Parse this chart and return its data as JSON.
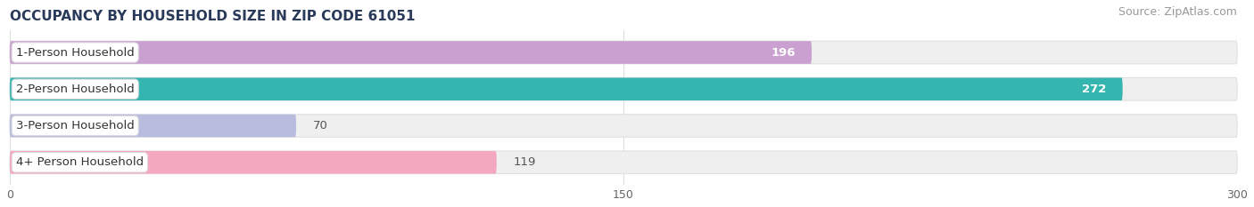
{
  "title": "OCCUPANCY BY HOUSEHOLD SIZE IN ZIP CODE 61051",
  "source": "Source: ZipAtlas.com",
  "categories": [
    "1-Person Household",
    "2-Person Household",
    "3-Person Household",
    "4+ Person Household"
  ],
  "values": [
    196,
    272,
    70,
    119
  ],
  "bar_colors": [
    "#c9a0d0",
    "#35b5b0",
    "#b8bcdf",
    "#f4a8c0"
  ],
  "bar_bg_color": "#efefef",
  "bar_bg_edge_color": "#e0e0e0",
  "xlim": [
    0,
    300
  ],
  "xticks": [
    0,
    150,
    300
  ],
  "title_color": "#2a3a5a",
  "source_color": "#999999",
  "bar_height": 0.62,
  "bar_label_fontsize": 9.5,
  "cat_label_fontsize": 9.5,
  "title_fontsize": 11,
  "source_fontsize": 9,
  "fig_width": 14.06,
  "fig_height": 2.33,
  "background_color": "#ffffff",
  "rounding_size": 8
}
